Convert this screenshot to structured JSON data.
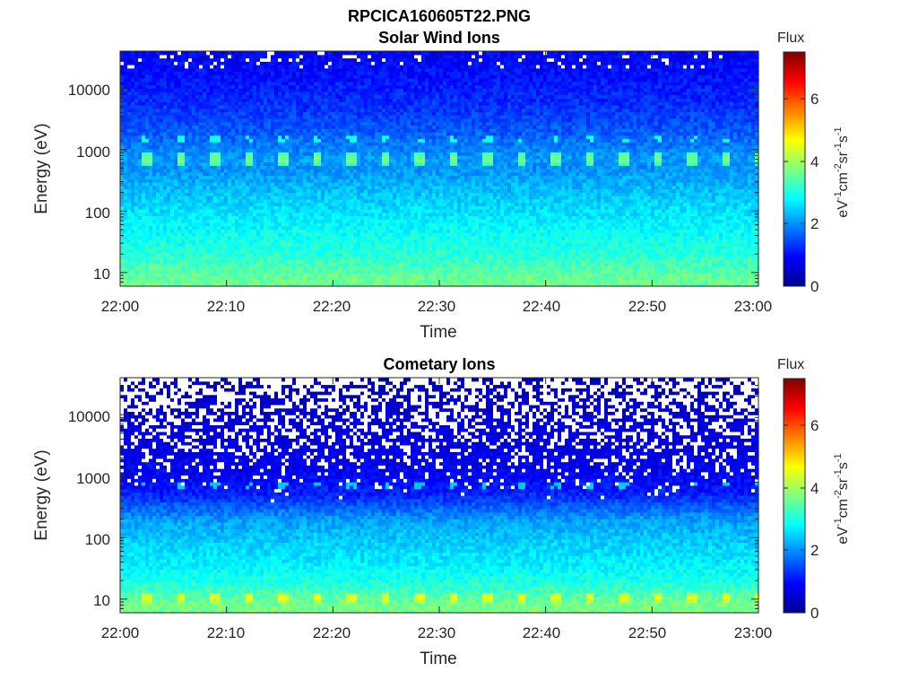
{
  "figure": {
    "filename_title": "RPCICA160605T22.PNG"
  },
  "chart_data": [
    {
      "type": "heatmap",
      "title": "Solar Wind Ions",
      "xlabel": "Time",
      "ylabel": "Energy (eV)",
      "xticks": [
        "22:00",
        "22:10",
        "22:20",
        "22:30",
        "22:40",
        "22:50",
        "23:00"
      ],
      "xlim": [
        "22:00",
        "23:00"
      ],
      "yscale": "log",
      "ylim": [
        6,
        40000
      ],
      "yticks": [
        10,
        100,
        1000,
        10000
      ],
      "ytick_labels": [
        "10",
        "100",
        "1000",
        "10000"
      ],
      "colorbar": {
        "title": "Flux",
        "label": "eV-1cm-2sr-1s-1",
        "ticks": [
          "0",
          "2",
          "4",
          "6"
        ],
        "range": [
          0,
          7.5
        ],
        "colormap": "jet"
      },
      "approx_log_flux_profile": {
        "energy_eV": [
          8,
          12,
          20,
          40,
          100,
          250,
          500,
          700,
          1000,
          2000,
          5000,
          10000,
          20000,
          35000
        ],
        "value": [
          3.6,
          3.4,
          3.1,
          2.9,
          2.6,
          2.3,
          2.0,
          2.1,
          1.9,
          1.6,
          1.3,
          1.15,
          1.0,
          0.9
        ]
      },
      "periodic_peak": {
        "energy_eV": 720,
        "value": 3.8,
        "secondary_energy_eV": 1500,
        "secondary_value": 2.9,
        "period_minutes": 3.2
      }
    },
    {
      "type": "heatmap",
      "title": "Cometary Ions",
      "xlabel": "Time",
      "ylabel": "Energy (eV)",
      "xticks": [
        "22:00",
        "22:10",
        "22:20",
        "22:30",
        "22:40",
        "22:50",
        "23:00"
      ],
      "xlim": [
        "22:00",
        "23:00"
      ],
      "yscale": "log",
      "ylim": [
        6,
        40000
      ],
      "yticks": [
        10,
        100,
        1000,
        10000
      ],
      "ytick_labels": [
        "10",
        "100",
        "1000",
        "10000"
      ],
      "colorbar": {
        "title": "Flux",
        "label": "eV-1cm-2sr-1s-1",
        "ticks": [
          "0",
          "2",
          "4",
          "6"
        ],
        "range": [
          0,
          7.5
        ],
        "colormap": "jet"
      },
      "approx_log_flux_profile": {
        "energy_eV": [
          8,
          12,
          20,
          40,
          100,
          200,
          300,
          500,
          1000,
          2000,
          5000,
          10000,
          20000,
          35000
        ],
        "value": [
          3.7,
          3.4,
          3.0,
          2.7,
          2.4,
          2.1,
          1.7,
          1.2,
          0.9,
          0.8,
          0.7,
          0.6,
          0.5,
          0.45
        ]
      },
      "periodic_peak": {
        "energy_eV": 11,
        "value": 4.6,
        "secondary_energy_eV": 750,
        "secondary_value": 2.4,
        "period_minutes": 3.2
      },
      "missing_data_fraction_high_energy": 0.45
    }
  ]
}
